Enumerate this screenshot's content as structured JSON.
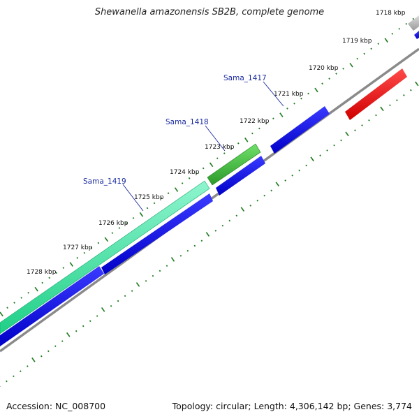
{
  "title": "Shewanella amazonensis SB2B, complete genome",
  "footer": {
    "accession": "Accession: NC_008700",
    "summary": "Topology: circular; Length: 4,306,142 bp; Genes: 3,774"
  },
  "ticks": [
    "1718 kbp",
    "1719 kbp",
    "1720 kbp",
    "1721 kbp",
    "1722 kbp",
    "1723 kbp",
    "1724 kbp",
    "1725 kbp",
    "1726 kbp",
    "1727 kbp",
    "1728 kbp"
  ],
  "genes": [
    {
      "name": "Sama_1417"
    },
    {
      "name": "Sama_1418"
    },
    {
      "name": "Sama_1419"
    }
  ],
  "colors": {
    "forward_cds": "#0000e6",
    "gene_1418": "#3cb832",
    "gene_1419": "#33e6a0",
    "red_feature": "#e60000",
    "backbone": "#8a8a8a",
    "ticks": "#1a7a1a"
  }
}
